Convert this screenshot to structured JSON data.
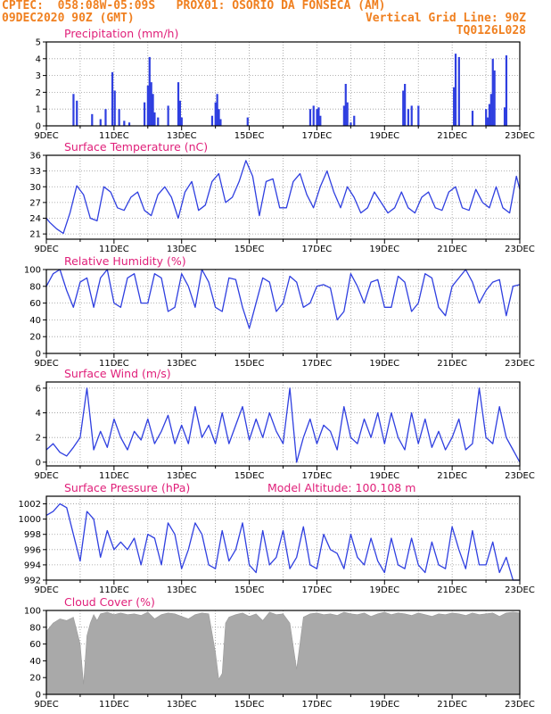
{
  "header": {
    "line1": "CPTEC:  058:08W-05:09S   PROX01: OSORIO DA FONSECA (AM)",
    "line2_left": "09DEC2020 90Z (GMT)",
    "line2_right": "Vertical Grid Line: 90Z",
    "line3_right": "TQ0126L028"
  },
  "colors": {
    "header": "#f08020",
    "title": "#e0207a",
    "line": "#2f3fe0",
    "bar": "#2f3fe0",
    "cloud": "#a9a9a9"
  },
  "x_labels": [
    "9DEC",
    "11DEC",
    "13DEC",
    "15DEC",
    "17DEC",
    "19DEC",
    "21DEC",
    "23DEC"
  ],
  "chart_data": [
    {
      "type": "bar",
      "title": "Precipitation (mm/h)",
      "ylim": [
        0,
        5
      ],
      "yticks": [
        0,
        1,
        2,
        3,
        4,
        5
      ],
      "x_unit": "days since 9DEC 00Z",
      "x": [
        0.8,
        0.9,
        1.35,
        1.6,
        1.75,
        1.95,
        2.02,
        2.15,
        2.3,
        2.45,
        2.9,
        3.0,
        3.05,
        3.1,
        3.15,
        3.2,
        3.3,
        3.6,
        3.9,
        3.95,
        4.0,
        4.9,
        5.0,
        5.05,
        5.1,
        5.15,
        5.95,
        7.8,
        7.9,
        8.0,
        8.05,
        8.1,
        8.8,
        8.85,
        8.9,
        9.0,
        9.1,
        10.55,
        10.6,
        10.7,
        10.8,
        11.0,
        12.05,
        12.1,
        12.2,
        12.6,
        13.0,
        13.05,
        13.1,
        13.15,
        13.2,
        13.25,
        13.55,
        13.6
      ],
      "values": [
        1.9,
        1.5,
        0.7,
        0.4,
        1.0,
        3.2,
        2.1,
        1.0,
        0.3,
        0.2,
        1.4,
        2.4,
        4.1,
        2.6,
        1.9,
        0.8,
        0.5,
        1.2,
        2.6,
        1.5,
        0.5,
        0.6,
        1.4,
        1.9,
        1.0,
        0.4,
        0.5,
        1.0,
        1.2,
        1.0,
        1.1,
        0.6,
        1.2,
        2.5,
        1.4,
        0.2,
        0.6,
        2.1,
        2.5,
        1.0,
        1.2,
        1.2,
        2.3,
        4.3,
        4.1,
        0.9,
        1.0,
        0.5,
        1.3,
        1.9,
        4.0,
        3.3,
        1.1,
        4.2
      ]
    },
    {
      "type": "line",
      "title": "Surface Temperature (nC)",
      "ylim": [
        20,
        36
      ],
      "yticks": [
        21,
        24,
        27,
        30,
        33,
        36
      ],
      "x_unit": "days since 9DEC 00Z",
      "x": [
        0,
        0.1,
        0.3,
        0.5,
        0.7,
        0.9,
        1.1,
        1.3,
        1.5,
        1.7,
        1.9,
        2.1,
        2.3,
        2.5,
        2.7,
        2.9,
        3.1,
        3.3,
        3.5,
        3.7,
        3.9,
        4.1,
        4.3,
        4.5,
        4.7,
        4.9,
        5.1,
        5.3,
        5.5,
        5.7,
        5.9,
        6.1,
        6.3,
        6.5,
        6.7,
        6.9,
        7.1,
        7.3,
        7.5,
        7.7,
        7.9,
        8.1,
        8.3,
        8.5,
        8.7,
        8.9,
        9.1,
        9.3,
        9.5,
        9.7,
        9.9,
        10.1,
        10.3,
        10.5,
        10.7,
        10.9,
        11.1,
        11.3,
        11.5,
        11.7,
        11.9,
        12.1,
        12.3,
        12.5,
        12.7,
        12.9,
        13.1,
        13.3,
        13.5,
        13.7,
        13.9,
        14.0
      ],
      "values": [
        24,
        23.2,
        22,
        21.1,
        25,
        30.2,
        28.5,
        24,
        23.5,
        30,
        29,
        26,
        25.5,
        28,
        29,
        25.5,
        24.5,
        28.5,
        30,
        28,
        24,
        29,
        31,
        25.5,
        26.5,
        31,
        32.5,
        27,
        28,
        31,
        35,
        32,
        24.5,
        31,
        31.5,
        26,
        26,
        31,
        32.5,
        28.5,
        26,
        30,
        33,
        29,
        26,
        30,
        28,
        25,
        26,
        29,
        27,
        25,
        26,
        29,
        26,
        25,
        28,
        29,
        26,
        25.5,
        29,
        30,
        26,
        25.5,
        29.5,
        27,
        26,
        30,
        26,
        25,
        32,
        29.5
      ]
    },
    {
      "type": "line",
      "title": "Relative Humidity (%)",
      "ylim": [
        0,
        100
      ],
      "yticks": [
        0,
        20,
        40,
        60,
        80,
        100
      ],
      "x_unit": "days since 9DEC 00Z",
      "x": [
        0,
        0.2,
        0.4,
        0.6,
        0.8,
        1.0,
        1.2,
        1.4,
        1.6,
        1.8,
        2.0,
        2.2,
        2.4,
        2.6,
        2.8,
        3.0,
        3.2,
        3.4,
        3.6,
        3.8,
        4.0,
        4.2,
        4.4,
        4.6,
        4.8,
        5.0,
        5.2,
        5.4,
        5.6,
        5.8,
        6.0,
        6.2,
        6.4,
        6.6,
        6.8,
        7.0,
        7.2,
        7.4,
        7.6,
        7.8,
        8.0,
        8.2,
        8.4,
        8.6,
        8.8,
        9.0,
        9.2,
        9.4,
        9.6,
        9.8,
        10.0,
        10.2,
        10.4,
        10.6,
        10.8,
        11.0,
        11.2,
        11.4,
        11.6,
        11.8,
        12.0,
        12.2,
        12.4,
        12.6,
        12.8,
        13.0,
        13.2,
        13.4,
        13.6,
        13.8,
        14.0
      ],
      "values": [
        80,
        95,
        100,
        75,
        55,
        85,
        90,
        55,
        90,
        100,
        60,
        55,
        90,
        95,
        60,
        60,
        95,
        90,
        50,
        55,
        95,
        80,
        55,
        100,
        85,
        55,
        50,
        90,
        88,
        55,
        30,
        60,
        90,
        85,
        50,
        60,
        92,
        85,
        55,
        60,
        80,
        82,
        78,
        40,
        50,
        95,
        80,
        60,
        85,
        88,
        55,
        55,
        92,
        85,
        50,
        60,
        95,
        90,
        55,
        45,
        80,
        90,
        100,
        85,
        60,
        75,
        85,
        88,
        45,
        80,
        82
      ]
    },
    {
      "type": "line",
      "title": "Surface Wind (m/s)",
      "ylim": [
        -0.3,
        6.5
      ],
      "yticks": [
        0,
        2,
        4,
        6
      ],
      "x_unit": "days since 9DEC 00Z",
      "x": [
        0,
        0.2,
        0.4,
        0.6,
        0.8,
        1.0,
        1.2,
        1.4,
        1.6,
        1.8,
        2.0,
        2.2,
        2.4,
        2.6,
        2.8,
        3.0,
        3.2,
        3.4,
        3.6,
        3.8,
        4.0,
        4.2,
        4.4,
        4.6,
        4.8,
        5.0,
        5.2,
        5.4,
        5.6,
        5.8,
        6.0,
        6.2,
        6.4,
        6.6,
        6.8,
        7.0,
        7.2,
        7.4,
        7.6,
        7.8,
        8.0,
        8.2,
        8.4,
        8.6,
        8.8,
        9.0,
        9.2,
        9.4,
        9.6,
        9.8,
        10.0,
        10.2,
        10.4,
        10.6,
        10.8,
        11.0,
        11.2,
        11.4,
        11.6,
        11.8,
        12.0,
        12.2,
        12.4,
        12.6,
        12.8,
        13.0,
        13.2,
        13.4,
        13.6,
        13.8,
        14.0
      ],
      "values": [
        1,
        1.5,
        0.8,
        0.5,
        1.2,
        2,
        6,
        1,
        2.5,
        1.2,
        3.5,
        2,
        1,
        2.5,
        1.8,
        3.5,
        1.5,
        2.5,
        3.8,
        1.5,
        3,
        1.5,
        4.5,
        2,
        3,
        1.5,
        4,
        1.5,
        3,
        4.5,
        1.8,
        3.5,
        2,
        4,
        2.5,
        1.5,
        6,
        0,
        2,
        3.5,
        1.5,
        3,
        2.5,
        1,
        4.5,
        2,
        1.5,
        3.5,
        2,
        4,
        1.5,
        4,
        2,
        1,
        4,
        1.5,
        3.5,
        1.2,
        2.5,
        1,
        2,
        3.5,
        1,
        1.5,
        6,
        2,
        1.5,
        4.5,
        2,
        1,
        0
      ]
    },
    {
      "type": "line",
      "title": "Surface Pressure (hPa)",
      "subtitle": "Model Altitude: 100.108 m",
      "ylim": [
        992,
        1003
      ],
      "yticks": [
        992,
        994,
        996,
        998,
        1000,
        1002
      ],
      "x_unit": "days since 9DEC 00Z",
      "x": [
        0,
        0.2,
        0.4,
        0.6,
        0.8,
        1.0,
        1.2,
        1.4,
        1.6,
        1.8,
        2.0,
        2.2,
        2.4,
        2.6,
        2.8,
        3.0,
        3.2,
        3.4,
        3.6,
        3.8,
        4.0,
        4.2,
        4.4,
        4.6,
        4.8,
        5.0,
        5.2,
        5.4,
        5.6,
        5.8,
        6.0,
        6.2,
        6.4,
        6.6,
        6.8,
        7.0,
        7.2,
        7.4,
        7.6,
        7.8,
        8.0,
        8.2,
        8.4,
        8.6,
        8.8,
        9.0,
        9.2,
        9.4,
        9.6,
        9.8,
        10.0,
        10.2,
        10.4,
        10.6,
        10.8,
        11.0,
        11.2,
        11.4,
        11.6,
        11.8,
        12.0,
        12.2,
        12.4,
        12.6,
        12.8,
        13.0,
        13.2,
        13.4,
        13.6,
        13.8,
        14.0
      ],
      "values": [
        1000.5,
        1001,
        1002,
        1001.5,
        998,
        994.5,
        1001,
        1000,
        995,
        998.5,
        996,
        997,
        996,
        997.5,
        994,
        998,
        997.5,
        994,
        999.5,
        998,
        993.5,
        996,
        999.5,
        998,
        994,
        993.5,
        998.5,
        994.5,
        996,
        999.5,
        994,
        993,
        998.5,
        994,
        995,
        998.5,
        993.5,
        995,
        999,
        994,
        993.5,
        998,
        996,
        995.5,
        993.5,
        998,
        995,
        994,
        997.5,
        994.5,
        993,
        997.5,
        994,
        993.5,
        997.5,
        994,
        993,
        997,
        994,
        993.5,
        999,
        996,
        993.5,
        998.5,
        994,
        994,
        997,
        993,
        995,
        992,
        992
      ]
    },
    {
      "type": "area",
      "title": "Cloud Cover (%)",
      "ylim": [
        0,
        100
      ],
      "yticks": [
        0,
        20,
        40,
        60,
        80,
        100
      ],
      "x_unit": "days since 9DEC 00Z",
      "x": [
        0,
        0.2,
        0.4,
        0.6,
        0.8,
        1.0,
        1.1,
        1.2,
        1.3,
        1.4,
        1.5,
        1.6,
        1.8,
        2.0,
        2.2,
        2.4,
        2.6,
        2.8,
        3.0,
        3.2,
        3.4,
        3.6,
        3.8,
        4.0,
        4.2,
        4.4,
        4.6,
        4.8,
        5.0,
        5.1,
        5.2,
        5.3,
        5.4,
        5.6,
        5.8,
        6.0,
        6.2,
        6.4,
        6.6,
        6.8,
        7.0,
        7.2,
        7.4,
        7.6,
        7.8,
        8.0,
        8.2,
        8.4,
        8.6,
        8.8,
        9.0,
        9.2,
        9.4,
        9.6,
        9.8,
        10.0,
        10.2,
        10.4,
        10.6,
        10.8,
        11.0,
        11.2,
        11.4,
        11.6,
        11.8,
        12.0,
        12.2,
        12.4,
        12.6,
        12.8,
        13.0,
        13.2,
        13.4,
        13.6,
        13.8,
        14.0
      ],
      "values": [
        75,
        85,
        90,
        88,
        92,
        60,
        12,
        70,
        85,
        95,
        88,
        96,
        98,
        95,
        97,
        95,
        96,
        94,
        98,
        90,
        95,
        97,
        96,
        93,
        90,
        95,
        97,
        96,
        50,
        18,
        25,
        85,
        92,
        95,
        97,
        93,
        96,
        88,
        98,
        95,
        96,
        85,
        30,
        92,
        96,
        97,
        95,
        96,
        94,
        98,
        96,
        95,
        97,
        93,
        96,
        98,
        95,
        97,
        96,
        94,
        97,
        95,
        93,
        96,
        95,
        97,
        96,
        94,
        97,
        95,
        96,
        97,
        93,
        97,
        98,
        97
      ]
    }
  ]
}
